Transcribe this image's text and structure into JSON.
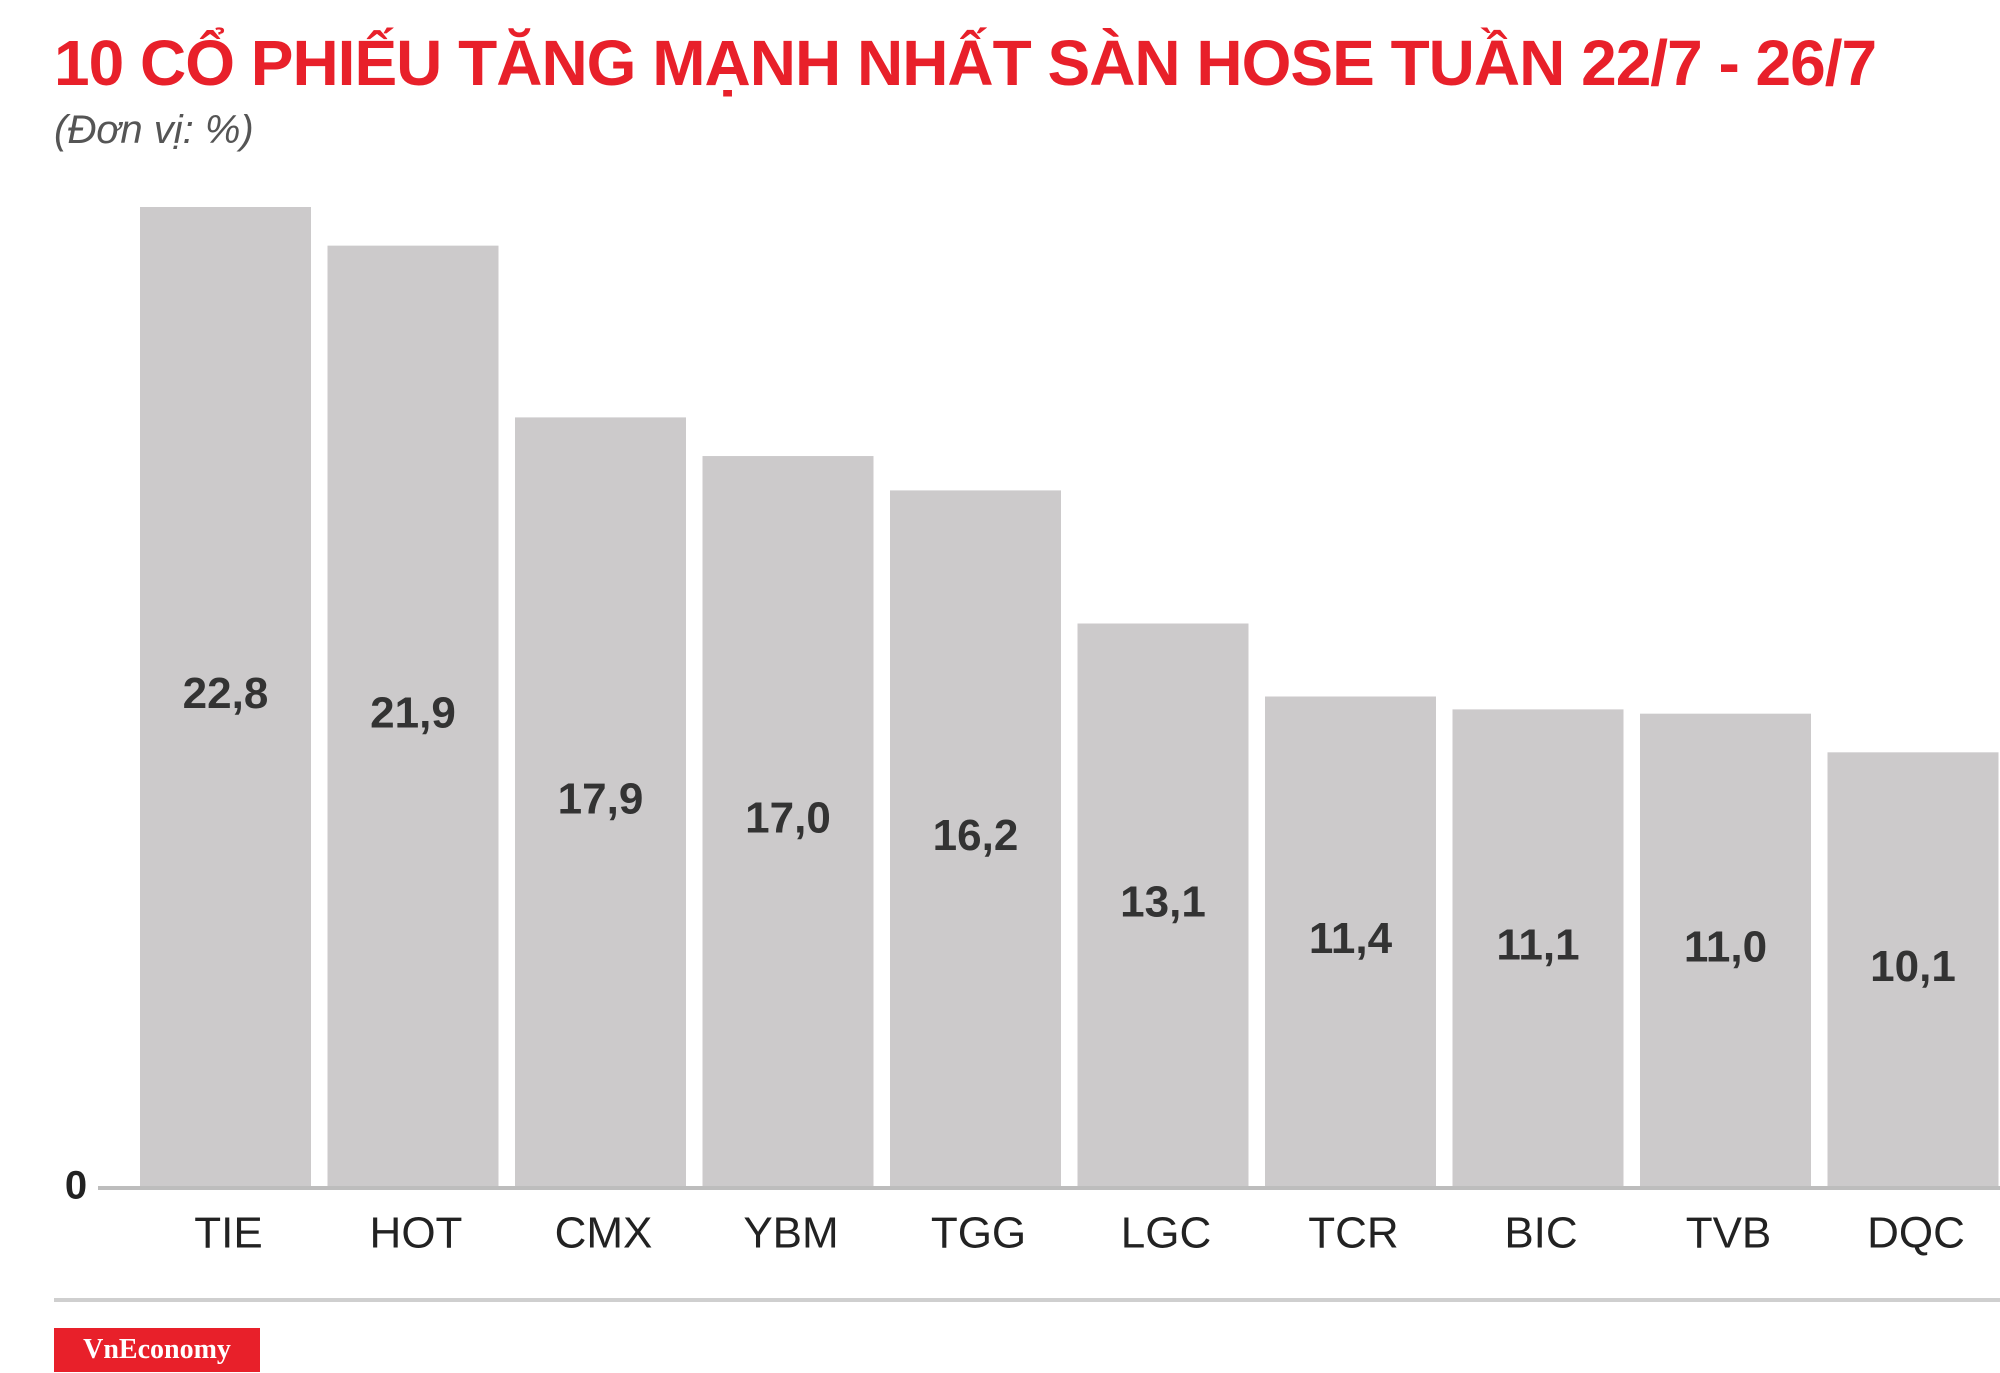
{
  "title": "10 CỔ PHIẾU TĂNG MẠNH NHẤT SÀN HOSE TUẦN 22/7 - 26/7",
  "unit": "(Đơn vị: %)",
  "logo_text": "VnEconomy",
  "colors": {
    "title": "#e8202a",
    "bar": "#cccacb",
    "logo_bg": "#e8202a"
  },
  "chart_data": {
    "type": "bar",
    "categories": [
      "TIE",
      "HOT",
      "CMX",
      "YBM",
      "TGG",
      "LGC",
      "TCR",
      "BIC",
      "TVB",
      "DQC"
    ],
    "values": [
      22.8,
      21.9,
      17.9,
      17.0,
      16.2,
      13.1,
      11.4,
      11.1,
      11.0,
      10.1
    ],
    "value_labels": [
      "22,8",
      "21,9",
      "17,9",
      "17,0",
      "16,2",
      "13,1",
      "11,4",
      "11,1",
      "11,0",
      "10,1"
    ],
    "baseline_label": "0",
    "ylim": [
      0,
      22.8
    ],
    "grid": false,
    "legend": "none"
  }
}
